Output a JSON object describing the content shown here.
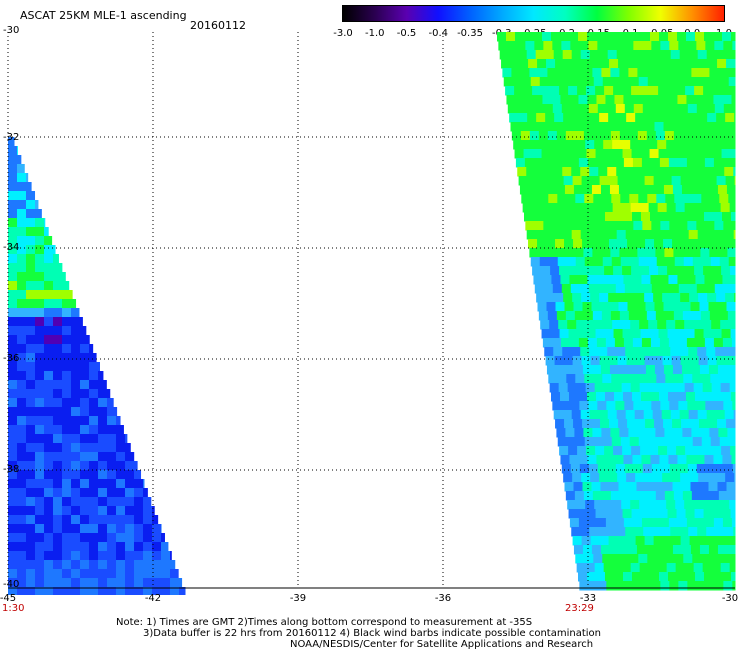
{
  "header": {
    "title": "ASCAT 25KM MLE-1 ascending",
    "date": "20160112"
  },
  "colorbar": {
    "colors": [
      "#000000",
      "#2a0050",
      "#5a00b0",
      "#1010ff",
      "#0060ff",
      "#00a8ff",
      "#00e8ff",
      "#00ffc0",
      "#00ff40",
      "#80ff00",
      "#f0ff00",
      "#ff9000",
      "#ff2000"
    ],
    "ticks": [
      "-3.0",
      "-1.0",
      "-0.5",
      "-0.4",
      "-0.35",
      "-0.3",
      "-0.25",
      "-0.2",
      "-0.15",
      "-0.1",
      "-0.05",
      "0.0",
      "1.0"
    ]
  },
  "map": {
    "y_labels": [
      "-30",
      "-32",
      "-34",
      "-36",
      "-38",
      "-40"
    ],
    "x_labels": [
      "-45",
      "-42",
      "-39",
      "-36",
      "-33",
      "-30"
    ],
    "start_time": "1:30",
    "end_time": "23:29",
    "colors": {
      "deep_blue": "#0a1ef0",
      "blue": "#1a4cff",
      "mid_blue": "#1e78ff",
      "light_blue": "#32b4ff",
      "cyan": "#00f0ff",
      "aqua_green": "#00ffb4",
      "green": "#14ff3c",
      "yellow_green": "#a0ff00",
      "yellow": "#e6ff00",
      "purple": "#5000b4"
    }
  },
  "notes": {
    "line1": "Note: 1) Times are GMT 2)Times along bottom correspond to measurement at -35S",
    "line2": "3)Data buffer is 22 hrs from 20160112 4) Black wind barbs indicate possible contamination",
    "line3": "NOAA/NESDIS/Center for Satellite Applications and Research"
  }
}
